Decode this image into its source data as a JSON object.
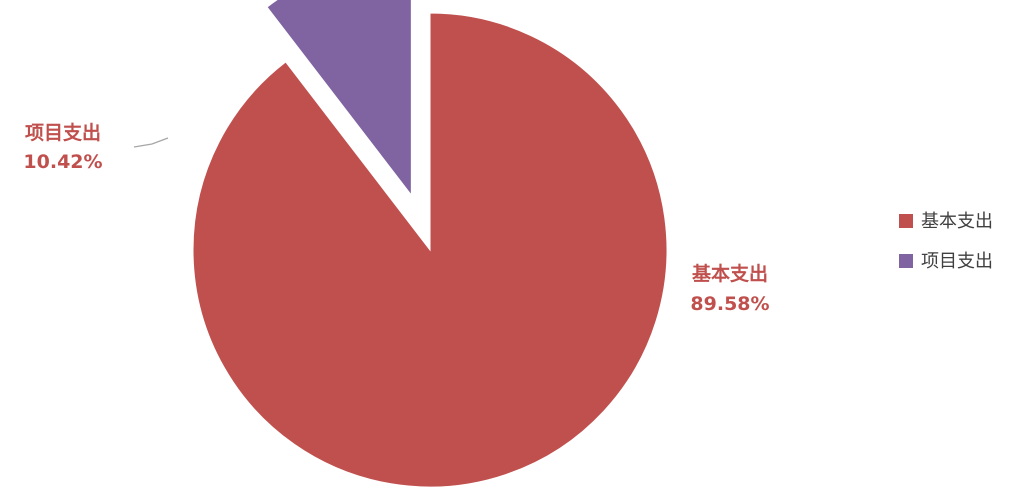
{
  "chart_data": {
    "type": "pie",
    "categories": [
      "基本支出",
      "项目支出"
    ],
    "values": [
      89.58,
      10.42
    ],
    "data_labels": [
      "89.58%",
      "10.42%"
    ],
    "colors": [
      "#C0504D",
      "#8064A2"
    ],
    "exploded": [
      false,
      true
    ],
    "legend_position": "right",
    "start": "12 o'clock, clockwise",
    "label_text_color": "#C0504D",
    "leader_line_color": "#A6A6A6"
  }
}
